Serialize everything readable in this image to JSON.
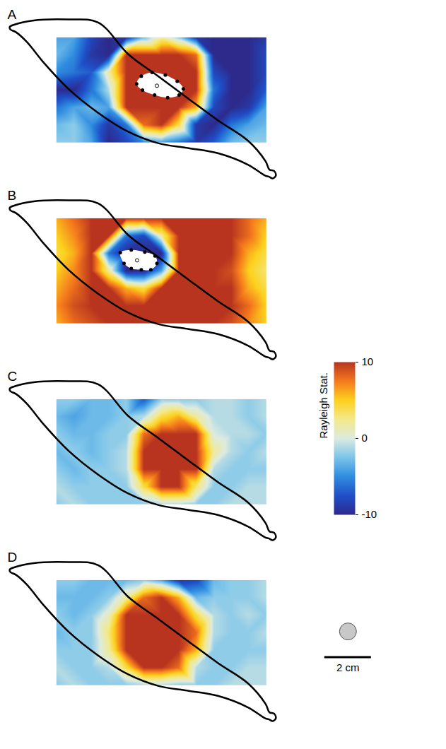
{
  "chart_data": [
    {
      "type": "heatmap",
      "panel_label": "A",
      "tick_labels": false,
      "xlim": [
        -2.1,
        9.6
      ],
      "ylim": [
        -1.6,
        5.3
      ],
      "grid_x": [
        0,
        0.75,
        1.5,
        2.25,
        3,
        3.75,
        4.5,
        5.25,
        6,
        6.75,
        7.5,
        8.25,
        9
      ],
      "grid_y": [
        4.5,
        3.75,
        3,
        2.25,
        1.5,
        0.75,
        0
      ],
      "cells": [
        [
          -4,
          -4,
          -8,
          -10,
          -9,
          -3,
          2,
          -2,
          -9,
          -10,
          -10,
          -10,
          -9
        ],
        [
          -3,
          -5,
          -9,
          -10,
          10,
          10,
          10,
          10,
          8,
          -10,
          -10,
          -10,
          -8
        ],
        [
          -5,
          -6,
          -7,
          2,
          10,
          10,
          10,
          10,
          10,
          -8,
          -10,
          -10,
          -8
        ],
        [
          -10,
          -10,
          -6,
          -1,
          10,
          10,
          10,
          10,
          10,
          -6,
          -10,
          -10,
          -7
        ],
        [
          -6,
          -4,
          -3,
          -4,
          10,
          10,
          10,
          10,
          6,
          -8,
          -10,
          -9,
          -4
        ],
        [
          -3,
          -2,
          -5,
          -9,
          -6,
          8,
          10,
          4,
          -9,
          -10,
          -6,
          -4,
          -3
        ],
        [
          -2,
          -2,
          -4,
          -10,
          -8,
          -5,
          -4,
          -6,
          -9,
          -7,
          -3,
          -2,
          -2
        ]
      ],
      "object_points": [
        [
          3.44,
          2.51
        ],
        [
          3.64,
          2.84
        ],
        [
          4.1,
          3.0
        ],
        [
          4.67,
          2.89
        ],
        [
          5.18,
          2.62
        ],
        [
          5.44,
          2.3
        ],
        [
          5.26,
          2.03
        ],
        [
          4.77,
          1.92
        ],
        [
          4.21,
          2.03
        ],
        [
          3.69,
          2.24
        ]
      ],
      "object_center": [
        4.31,
        2.43
      ]
    },
    {
      "type": "heatmap",
      "panel_label": "B",
      "tick_labels": false,
      "xlim": [
        -2.1,
        9.6
      ],
      "ylim": [
        -1.6,
        5.3
      ],
      "grid_x": [
        0,
        0.75,
        1.5,
        2.25,
        3,
        3.75,
        4.5,
        5.25,
        6,
        6.75,
        7.5,
        8.25,
        9
      ],
      "grid_y": [
        4.5,
        3.75,
        3,
        2.25,
        1.5,
        0.75,
        0
      ],
      "cells": [
        [
          6,
          8,
          10,
          10,
          10,
          10,
          10,
          10,
          10,
          10,
          10,
          8,
          6
        ],
        [
          5,
          7,
          10,
          10,
          -6,
          -8,
          2,
          10,
          10,
          10,
          10,
          8,
          5
        ],
        [
          4,
          6,
          10,
          -6,
          -10,
          -10,
          -10,
          10,
          10,
          10,
          10,
          6,
          4
        ],
        [
          5,
          7,
          10,
          2,
          -10,
          -10,
          -4,
          10,
          10,
          10,
          9,
          5,
          3
        ],
        [
          6,
          8,
          10,
          10,
          6,
          4,
          10,
          10,
          10,
          10,
          10,
          6,
          4
        ],
        [
          7,
          9,
          10,
          10,
          10,
          10,
          10,
          10,
          10,
          10,
          10,
          8,
          5
        ],
        [
          6,
          8,
          9,
          10,
          10,
          10,
          10,
          10,
          10,
          10,
          9,
          7,
          5
        ]
      ],
      "object_points": [
        [
          2.74,
          3.03
        ],
        [
          3.21,
          3.14
        ],
        [
          3.79,
          3.05
        ],
        [
          4.23,
          2.89
        ],
        [
          4.31,
          2.57
        ],
        [
          4.05,
          2.3
        ],
        [
          3.64,
          2.3
        ],
        [
          3.21,
          2.35
        ],
        [
          2.9,
          2.57
        ]
      ],
      "object_center": [
        3.46,
        2.7
      ]
    },
    {
      "type": "heatmap",
      "panel_label": "C",
      "tick_labels": false,
      "xlim": [
        -2.1,
        9.6
      ],
      "ylim": [
        -1.6,
        5.3
      ],
      "grid_x": [
        0,
        0.75,
        1.5,
        2.25,
        3,
        3.75,
        4.5,
        5.25,
        6,
        6.75,
        7.5,
        8.25,
        9
      ],
      "grid_y": [
        4.5,
        3.75,
        3,
        2.25,
        1.5,
        0.75,
        0
      ],
      "cells": [
        [
          -2,
          -2,
          -3,
          -3,
          -2,
          -7,
          -2,
          -2,
          -2,
          -1,
          -1,
          -2,
          -1
        ],
        [
          -3,
          -4,
          -3,
          -3,
          -2,
          -1,
          4,
          6,
          2,
          -1,
          -1,
          -2,
          -1
        ],
        [
          -2,
          -3,
          -3,
          -2,
          -2,
          8,
          10,
          10,
          10,
          0,
          -1,
          -1,
          -2
        ],
        [
          -3,
          -2,
          -3,
          -2,
          -1,
          10,
          10,
          10,
          10,
          2,
          -1,
          -2,
          -1
        ],
        [
          -2,
          -3,
          -2,
          -2,
          -1,
          10,
          10,
          10,
          10,
          -1,
          -2,
          -2,
          -2
        ],
        [
          -1,
          -2,
          -2,
          -2,
          -2,
          4,
          10,
          10,
          3,
          -2,
          -2,
          -1,
          -1
        ],
        [
          -2,
          -1,
          -2,
          -2,
          -2,
          -2,
          -1,
          -1,
          -2,
          -2,
          -1,
          -1,
          -1
        ]
      ]
    },
    {
      "type": "heatmap",
      "panel_label": "D",
      "tick_labels": false,
      "xlim": [
        -2.1,
        9.6
      ],
      "ylim": [
        -1.6,
        5.3
      ],
      "grid_x": [
        0,
        0.75,
        1.5,
        2.25,
        3,
        3.75,
        4.5,
        5.25,
        6,
        6.75,
        7.5,
        8.25,
        9
      ],
      "grid_y": [
        4.5,
        3.75,
        3,
        2.25,
        1.5,
        0.75,
        0
      ],
      "cells": [
        [
          -2,
          -2,
          -3,
          -3,
          -3,
          -2,
          -4,
          -9,
          -8,
          -3,
          -2,
          -2,
          -1
        ],
        [
          -3,
          -3,
          -3,
          -2,
          2,
          8,
          10,
          6,
          -3,
          -2,
          -2,
          -2,
          -1
        ],
        [
          -2,
          -3,
          -2,
          1,
          10,
          10,
          10,
          10,
          4,
          -1,
          -2,
          -1,
          -2
        ],
        [
          -3,
          -2,
          -2,
          3,
          10,
          10,
          10,
          10,
          8,
          -1,
          -2,
          -2,
          -1
        ],
        [
          -2,
          -2,
          -2,
          2,
          10,
          10,
          10,
          10,
          6,
          -2,
          -2,
          -2,
          -2
        ],
        [
          -1,
          -2,
          -2,
          -1,
          4,
          10,
          10,
          8,
          -1,
          -2,
          -2,
          -1,
          -1
        ],
        [
          -2,
          -1,
          -2,
          -2,
          -2,
          -1,
          -1,
          -2,
          -2,
          -2,
          -1,
          -1,
          -1
        ]
      ],
      "scale_bar": {
        "length": 2,
        "label": "2 cm"
      }
    }
  ],
  "outline": {
    "x": [
      -2.0,
      -1.79,
      -1.03,
      0.51,
      1.79,
      3.08,
      4.36,
      5.64,
      6.92,
      8.21,
      8.97,
      9.13,
      9.33,
      9.41,
      9.28,
      9.1,
      8.97,
      8.21,
      6.92,
      5.64,
      4.36,
      3.08,
      1.79,
      0.51,
      -0.51,
      -1.28,
      -1.74,
      -1.97
    ],
    "y": [
      4.95,
      5.05,
      5.22,
      5.27,
      5.14,
      3.78,
      2.84,
      1.89,
      0.95,
      0.08,
      -0.81,
      -1.16,
      -1.22,
      -1.41,
      -1.54,
      -1.46,
      -1.43,
      -0.95,
      -0.46,
      -0.24,
      -0.03,
      0.46,
      1.27,
      2.3,
      3.38,
      4.32,
      4.73,
      4.84
    ]
  },
  "colorbar": {
    "label": "Rayleigh Stat.",
    "range": [
      -10,
      10
    ],
    "ticks": [
      -10,
      0,
      10
    ],
    "colors": [
      "#2d2a8c",
      "#1f4fc8",
      "#2f8de0",
      "#7cc4ea",
      "#dcebe0",
      "#f4e98a",
      "#fcd21e",
      "#f57a1c",
      "#b8341f"
    ]
  }
}
